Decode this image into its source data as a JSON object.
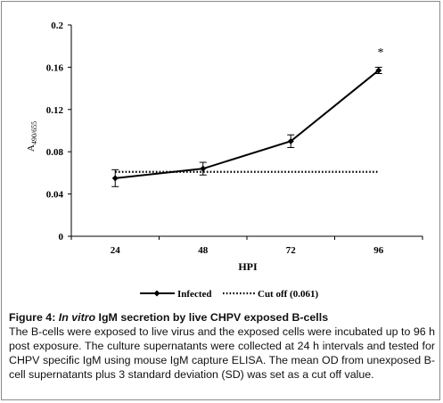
{
  "chart_data": {
    "type": "line",
    "categories": [
      "24",
      "48",
      "72",
      "96"
    ],
    "series": [
      {
        "name": "Infected",
        "values": [
          0.055,
          0.064,
          0.09,
          0.157
        ],
        "errors": [
          0.008,
          0.006,
          0.006,
          0.003
        ],
        "color": "#000000",
        "marker": "diamond"
      },
      {
        "name": "Cut off (0.061)",
        "values": [
          0.061,
          0.061,
          0.061,
          0.061
        ],
        "style": "dotted",
        "color": "#000000"
      }
    ],
    "xlabel": "HPI",
    "ylabel_main": "A",
    "ylabel_sub": "490/655",
    "ylim": [
      0,
      0.2
    ],
    "yticks": [
      "0",
      "0.04",
      "0.08",
      "0.12",
      "0.16",
      "0.2"
    ],
    "annotation": "*",
    "grid": false,
    "legend_position": "bottom"
  },
  "caption": {
    "label": "Figure 4:",
    "title_italic": "In vitro",
    "title_rest": "IgM secretion by live CHPV exposed B-cells",
    "body": "The B-cells were exposed to live virus and the exposed cells were incubated up to 96 h post exposure. The culture supernatants were collected at 24 h intervals and tested for CHPV specific IgM using mouse IgM capture ELISA. The mean OD from unexposed B-cell supernatants plus 3 standard deviation (SD) was set as a cut off value."
  }
}
